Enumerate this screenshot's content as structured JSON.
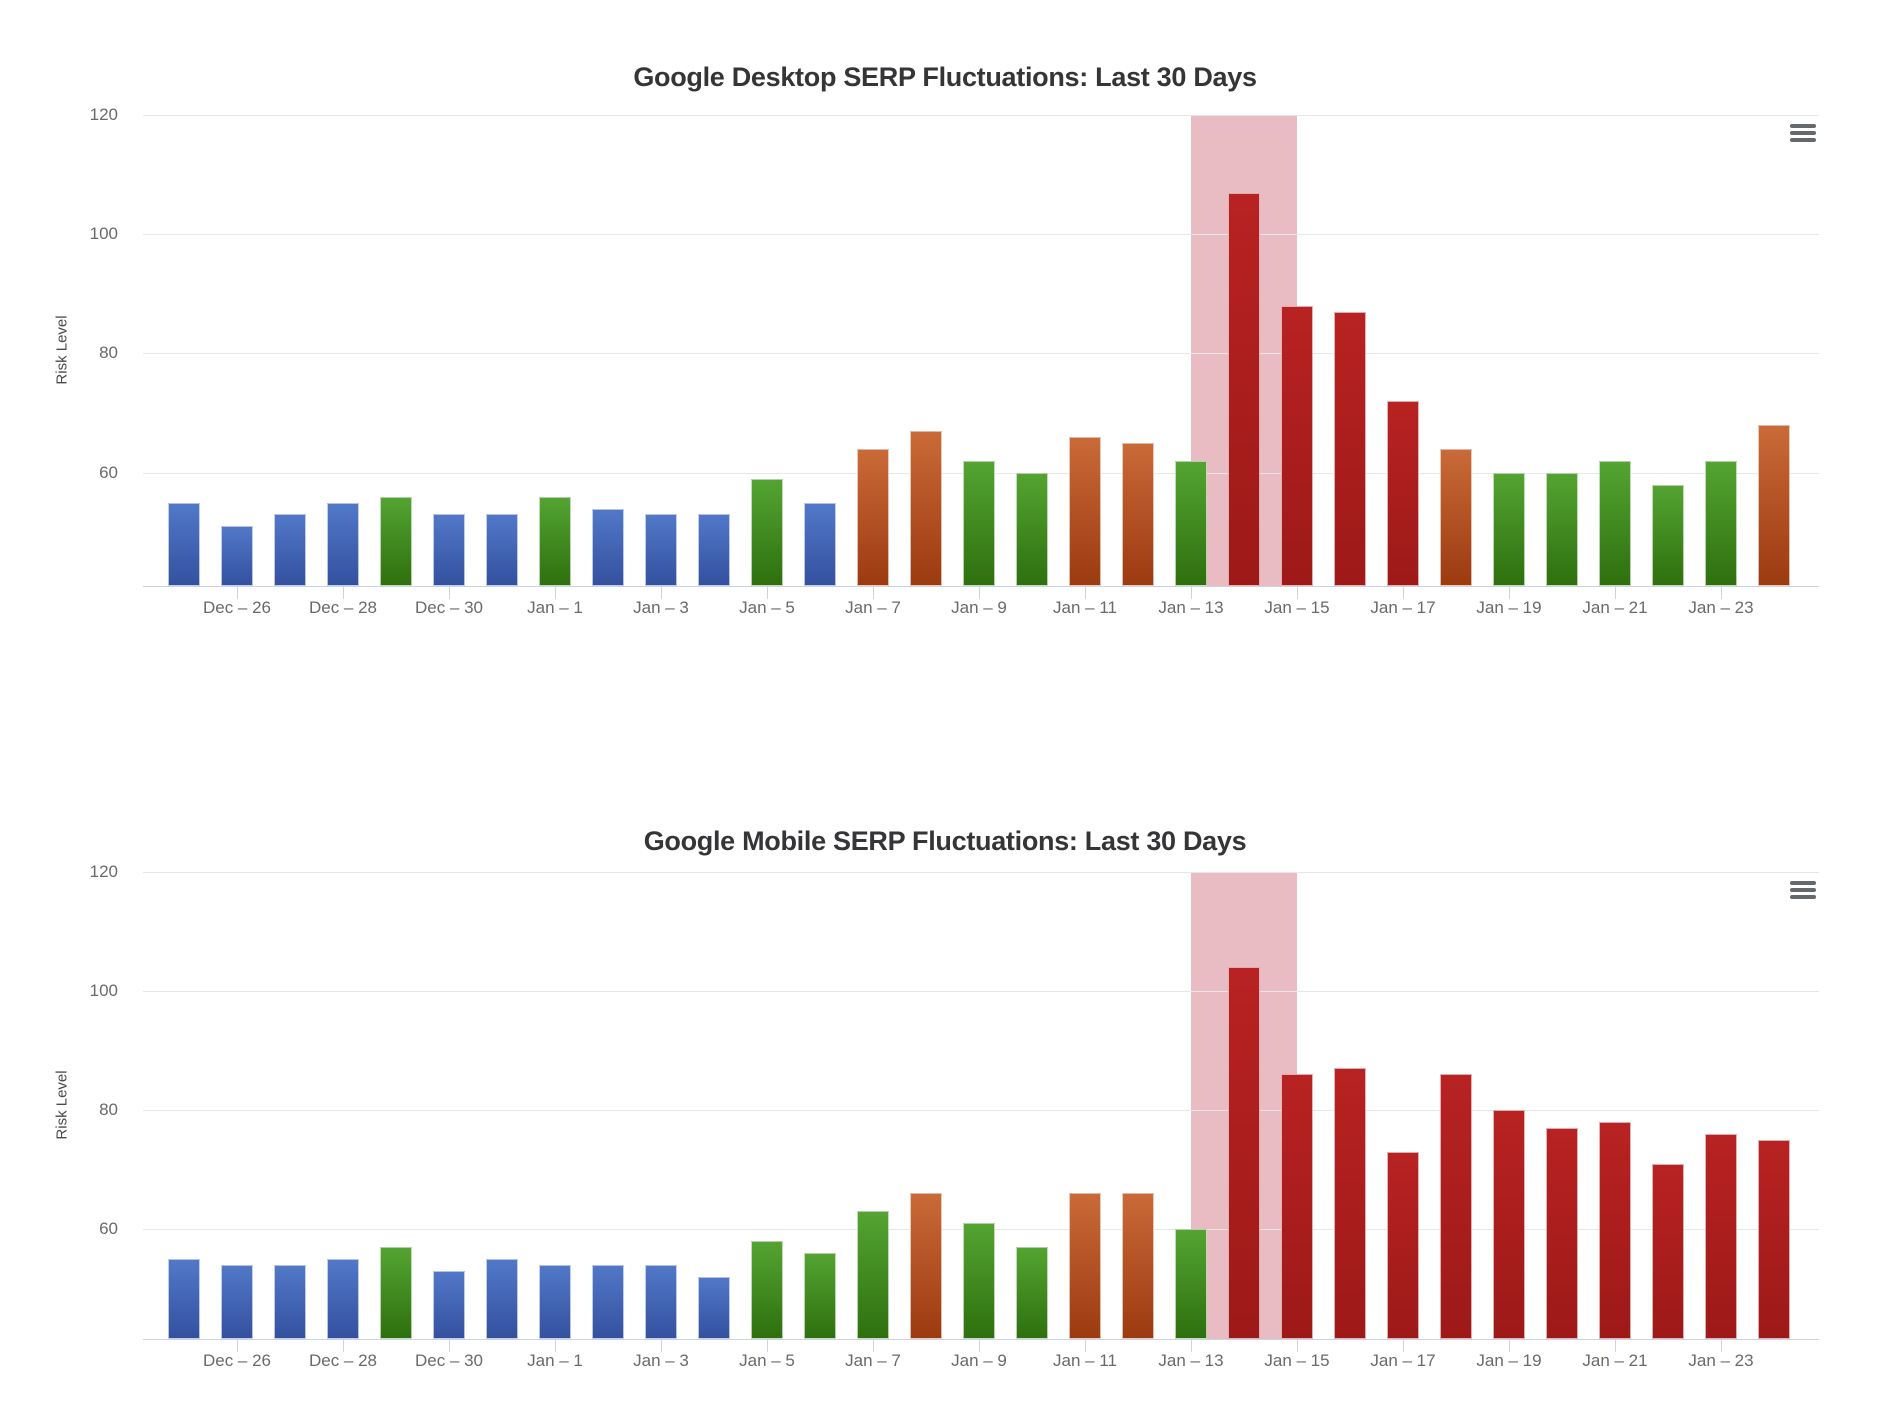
{
  "page": {
    "background": "#ffffff"
  },
  "colors": {
    "bar_blue_top": "#5178c8",
    "bar_blue_bottom": "#34519f",
    "bar_green_top": "#54a432",
    "bar_green_bottom": "#2e700e",
    "bar_orange_top": "#c96a38",
    "bar_orange_bottom": "#9c3a10",
    "bar_red_top": "#b82222",
    "bar_red_bottom": "#9d1918",
    "plot_band_pink": "#e9bcc4",
    "gridline": "#e7e7e7",
    "axis_line": "#ccd3e6",
    "tick_label_gray": "#6a6a6a",
    "axis_title_gray": "#4a4a4a",
    "chart_title_dark": "#353537",
    "menu_icon_gray": "#65696c"
  },
  "charts": [
    {
      "title": "Google Desktop SERP Fluctuations: Last 30 Days",
      "y_axis_title": "Risk Level",
      "menu_icon": "hamburger-icon",
      "chart_data": {
        "type": "bar",
        "title": "Google Desktop SERP Fluctuations: Last 30 Days",
        "xlabel": "",
        "ylabel": "Risk Level",
        "ylim": [
          41,
          120
        ],
        "y_ticks": [
          60,
          80,
          100,
          120
        ],
        "grid": "horizontal",
        "legend": "none",
        "categories": [
          "Dec 25",
          "Dec 26",
          "Dec 27",
          "Dec 28",
          "Dec 29",
          "Dec 30",
          "Dec 31",
          "Jan 1",
          "Jan 2",
          "Jan 3",
          "Jan 4",
          "Jan 5",
          "Jan 6",
          "Jan 7",
          "Jan 8",
          "Jan 9",
          "Jan 10",
          "Jan 11",
          "Jan 12",
          "Jan 13",
          "Jan 14",
          "Jan 15",
          "Jan 16",
          "Jan 17",
          "Jan 18",
          "Jan 19",
          "Jan 20",
          "Jan 21",
          "Jan 22",
          "Jan 23",
          "Jan 24"
        ],
        "values": [
          55,
          51,
          53,
          55,
          56,
          53,
          53,
          56,
          54,
          53,
          53,
          59,
          55,
          64,
          67,
          62,
          60,
          66,
          65,
          62,
          107,
          88,
          87,
          72,
          64,
          60,
          60,
          62,
          58,
          62,
          68
        ],
        "colors": [
          "blue",
          "blue",
          "blue",
          "blue",
          "green",
          "blue",
          "blue",
          "green",
          "blue",
          "blue",
          "blue",
          "green",
          "blue",
          "orange",
          "orange",
          "green",
          "green",
          "orange",
          "orange",
          "green",
          "red",
          "red",
          "red",
          "red",
          "orange",
          "green",
          "green",
          "green",
          "green",
          "green",
          "orange"
        ],
        "x_tick_labels": [
          "Dec – 26",
          "Dec – 28",
          "Dec – 30",
          "Jan – 1",
          "Jan – 3",
          "Jan – 5",
          "Jan – 7",
          "Jan – 9",
          "Jan – 11",
          "Jan – 13",
          "Jan – 15",
          "Jan – 17",
          "Jan – 19",
          "Jan – 21",
          "Jan – 23"
        ],
        "x_tick_indices": [
          1,
          3,
          5,
          7,
          9,
          11,
          13,
          15,
          17,
          19,
          21,
          23,
          25,
          27,
          29
        ],
        "plot_band": {
          "from_category": "Jan 13",
          "to_category": "Jan 15",
          "color": "#e9bcc4"
        }
      }
    },
    {
      "title": "Google Mobile SERP Fluctuations: Last 30 Days",
      "y_axis_title": "Risk Level",
      "menu_icon": "hamburger-icon",
      "chart_data": {
        "type": "bar",
        "title": "Google Mobile SERP Fluctuations: Last 30 Days",
        "xlabel": "",
        "ylabel": "Risk Level",
        "ylim": [
          41.5,
          120
        ],
        "y_ticks": [
          60,
          80,
          100,
          120
        ],
        "grid": "horizontal",
        "legend": "none",
        "categories": [
          "Dec 25",
          "Dec 26",
          "Dec 27",
          "Dec 28",
          "Dec 29",
          "Dec 30",
          "Dec 31",
          "Jan 1",
          "Jan 2",
          "Jan 3",
          "Jan 4",
          "Jan 5",
          "Jan 6",
          "Jan 7",
          "Jan 8",
          "Jan 9",
          "Jan 10",
          "Jan 11",
          "Jan 12",
          "Jan 13",
          "Jan 14",
          "Jan 15",
          "Jan 16",
          "Jan 17",
          "Jan 18",
          "Jan 19",
          "Jan 20",
          "Jan 21",
          "Jan 22",
          "Jan 23",
          "Jan 24"
        ],
        "values": [
          55,
          54,
          54,
          55,
          57,
          53,
          55,
          54,
          54,
          54,
          52,
          58,
          56,
          63,
          66,
          61,
          57,
          66,
          66,
          60,
          104,
          86,
          87,
          73,
          86,
          80,
          77,
          78,
          71,
          76,
          75
        ],
        "colors": [
          "blue",
          "blue",
          "blue",
          "blue",
          "green",
          "blue",
          "blue",
          "blue",
          "blue",
          "blue",
          "blue",
          "green",
          "green",
          "green",
          "orange",
          "green",
          "green",
          "orange",
          "orange",
          "green",
          "red",
          "red",
          "red",
          "red",
          "red",
          "red",
          "red",
          "red",
          "red",
          "red",
          "red"
        ],
        "x_tick_labels": [
          "Dec – 26",
          "Dec – 28",
          "Dec – 30",
          "Jan – 1",
          "Jan – 3",
          "Jan – 5",
          "Jan – 7",
          "Jan – 9",
          "Jan – 11",
          "Jan – 13",
          "Jan – 15",
          "Jan – 17",
          "Jan – 19",
          "Jan – 21",
          "Jan – 23"
        ],
        "x_tick_indices": [
          1,
          3,
          5,
          7,
          9,
          11,
          13,
          15,
          17,
          19,
          21,
          23,
          25,
          27,
          29
        ],
        "plot_band": {
          "from_category": "Jan 13",
          "to_category": "Jan 15",
          "color": "#e9bcc4"
        }
      }
    }
  ]
}
